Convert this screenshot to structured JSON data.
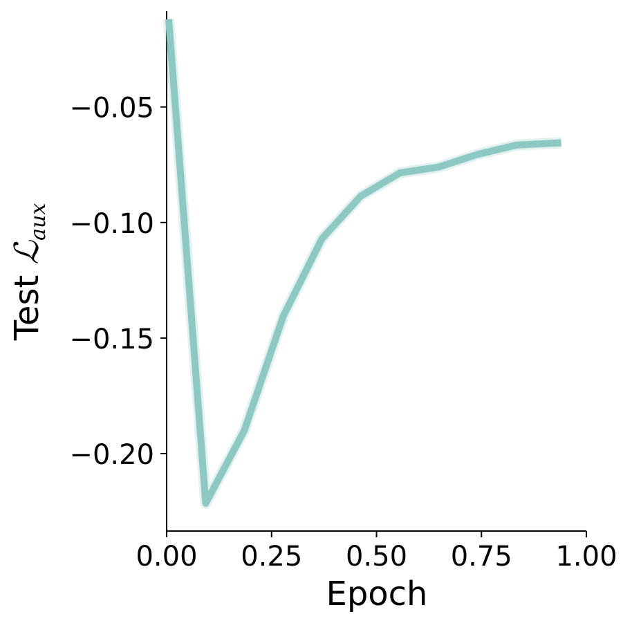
{
  "chart_data": {
    "type": "line",
    "title": "",
    "xlabel": "Epoch",
    "ylabel": {
      "prefix": "Test ",
      "symbol": "ℒ",
      "subscript": "aux"
    },
    "xlim": [
      0.0,
      1.0
    ],
    "ylim": [
      -0.2335,
      -0.0085
    ],
    "xticks": [
      0.0,
      0.25,
      0.5,
      0.75,
      1.0
    ],
    "xtick_labels": [
      "0.00",
      "0.25",
      "0.50",
      "0.75",
      "1.00"
    ],
    "yticks": [
      -0.05,
      -0.1,
      -0.15,
      -0.2
    ],
    "ytick_labels": [
      "−0.05",
      "−0.10",
      "−0.15",
      "−0.20"
    ],
    "grid": false,
    "legend": "none",
    "series": [
      {
        "color": "#8dc8c3",
        "x": [
          0.005,
          0.093,
          0.185,
          0.278,
          0.37,
          0.463,
          0.556,
          0.648,
          0.741,
          0.834,
          0.94
        ],
        "y": [
          -0.012,
          -0.2215,
          -0.19,
          -0.1405,
          -0.107,
          -0.0885,
          -0.0785,
          -0.076,
          -0.0705,
          -0.0665,
          -0.0655
        ]
      }
    ]
  }
}
